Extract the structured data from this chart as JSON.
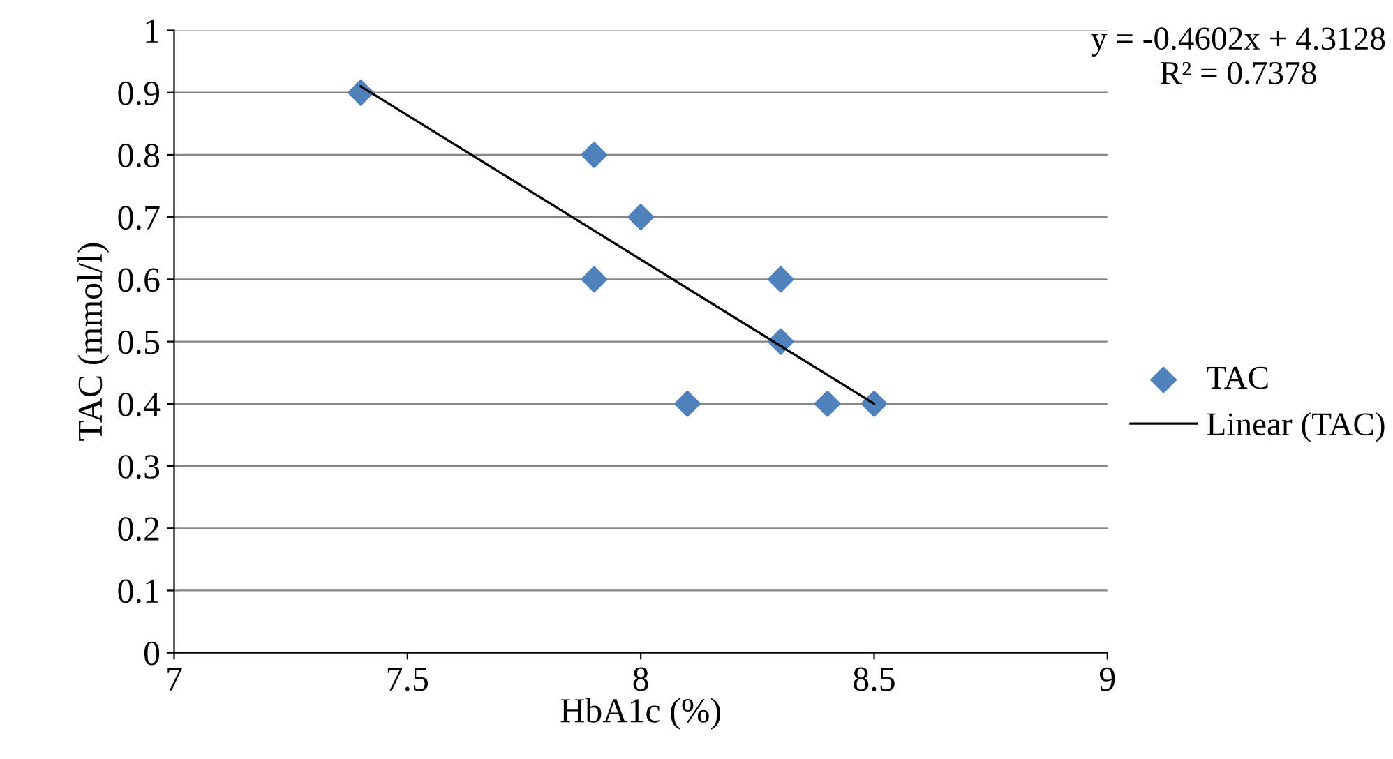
{
  "chart_data": {
    "type": "scatter",
    "xlabel": "HbA1c (%)",
    "ylabel": "TAC (mmol/l)",
    "xlim": [
      7,
      9
    ],
    "xticks": [
      7,
      7.5,
      8,
      8.5,
      9
    ],
    "ylim": [
      0,
      1
    ],
    "yticks": [
      0,
      0.1,
      0.2,
      0.3,
      0.4,
      0.5,
      0.6,
      0.7,
      0.8,
      0.9,
      1
    ],
    "grid": "y",
    "legend": "right",
    "annotations": [
      "y = -0.4602x + 4.3128\nR² = 0.7378"
    ],
    "series": [
      {
        "name": "TAC",
        "marker": "diamond",
        "color": "#4f81bd",
        "x": [
          7.4,
          7.9,
          8.0,
          7.9,
          8.3,
          8.3,
          8.1,
          8.4,
          8.5
        ],
        "values": [
          0.9,
          0.8,
          0.7,
          0.6,
          0.6,
          0.5,
          0.4,
          0.4,
          0.4
        ]
      },
      {
        "name": "Linear (TAC)",
        "type": "line",
        "color": "#000000",
        "x": [
          7.4,
          8.5
        ],
        "values": [
          0.91,
          0.4
        ]
      }
    ]
  }
}
